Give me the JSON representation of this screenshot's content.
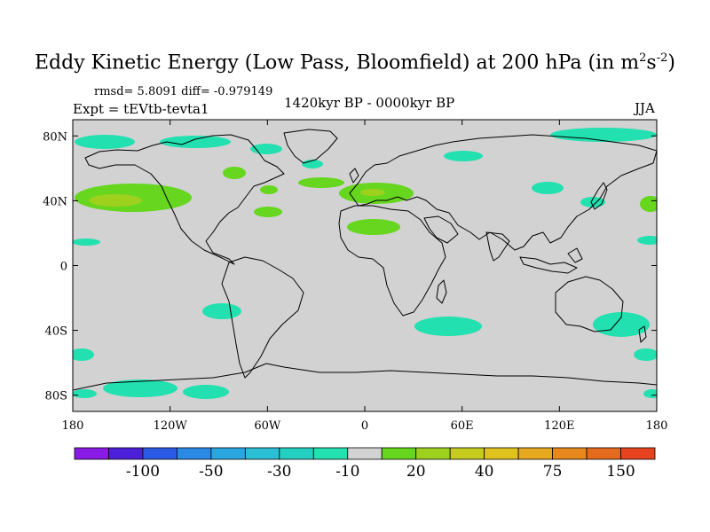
{
  "title_main": "Eddy Kinetic Energy (Low Pass, Bloomfield) at 200 hPa (in m",
  "title_sup1": "2",
  "title_mid": "s",
  "title_sup2": "-2",
  "title_end": ")",
  "stats_line": "rmsd= 5.8091 diff= -0.979149",
  "experiment_label": "Expt = tEVtb-tevta1",
  "period_label": "1420kyr BP - 0000kyr BP",
  "season_label": "JJA",
  "lat_ticks": [
    {
      "label": "80N",
      "lat": 80
    },
    {
      "label": "40N",
      "lat": 40
    },
    {
      "label": "0",
      "lat": 0
    },
    {
      "label": "40S",
      "lat": -40
    },
    {
      "label": "80S",
      "lat": -80
    }
  ],
  "lon_ticks": [
    {
      "label": "180",
      "lon": -180
    },
    {
      "label": "120W",
      "lon": -120
    },
    {
      "label": "60W",
      "lon": -60
    },
    {
      "label": "0",
      "lon": 0
    },
    {
      "label": "60E",
      "lon": 60
    },
    {
      "label": "120E",
      "lon": 120
    },
    {
      "label": "180",
      "lon": 180
    }
  ],
  "colorbar": {
    "colors": [
      "#8a1be6",
      "#4c1fd9",
      "#2b5ae6",
      "#2b8ae6",
      "#29a6e0",
      "#2bbfd6",
      "#22cfc0",
      "#22e0b0",
      "#d2d2d2",
      "#66d61e",
      "#9ed01e",
      "#c6cc1e",
      "#e0c21e",
      "#e6a81e",
      "#e6881e",
      "#e66a1e",
      "#e6441e"
    ],
    "tick_labels": [
      {
        "label": "-100",
        "boundary": 2
      },
      {
        "label": "-50",
        "boundary": 4
      },
      {
        "label": "-30",
        "boundary": 6
      },
      {
        "label": "-10",
        "boundary": 8
      },
      {
        "label": "20",
        "boundary": 10
      },
      {
        "label": "40",
        "boundary": 12
      },
      {
        "label": "75",
        "boundary": 14
      },
      {
        "label": "150",
        "boundary": 16
      }
    ]
  },
  "colors": {
    "background": "#d2d2d2",
    "positive_small": "#66d61e",
    "positive_medium": "#9ed01e",
    "negative_small": "#22e0b0",
    "coast": "#000000"
  }
}
